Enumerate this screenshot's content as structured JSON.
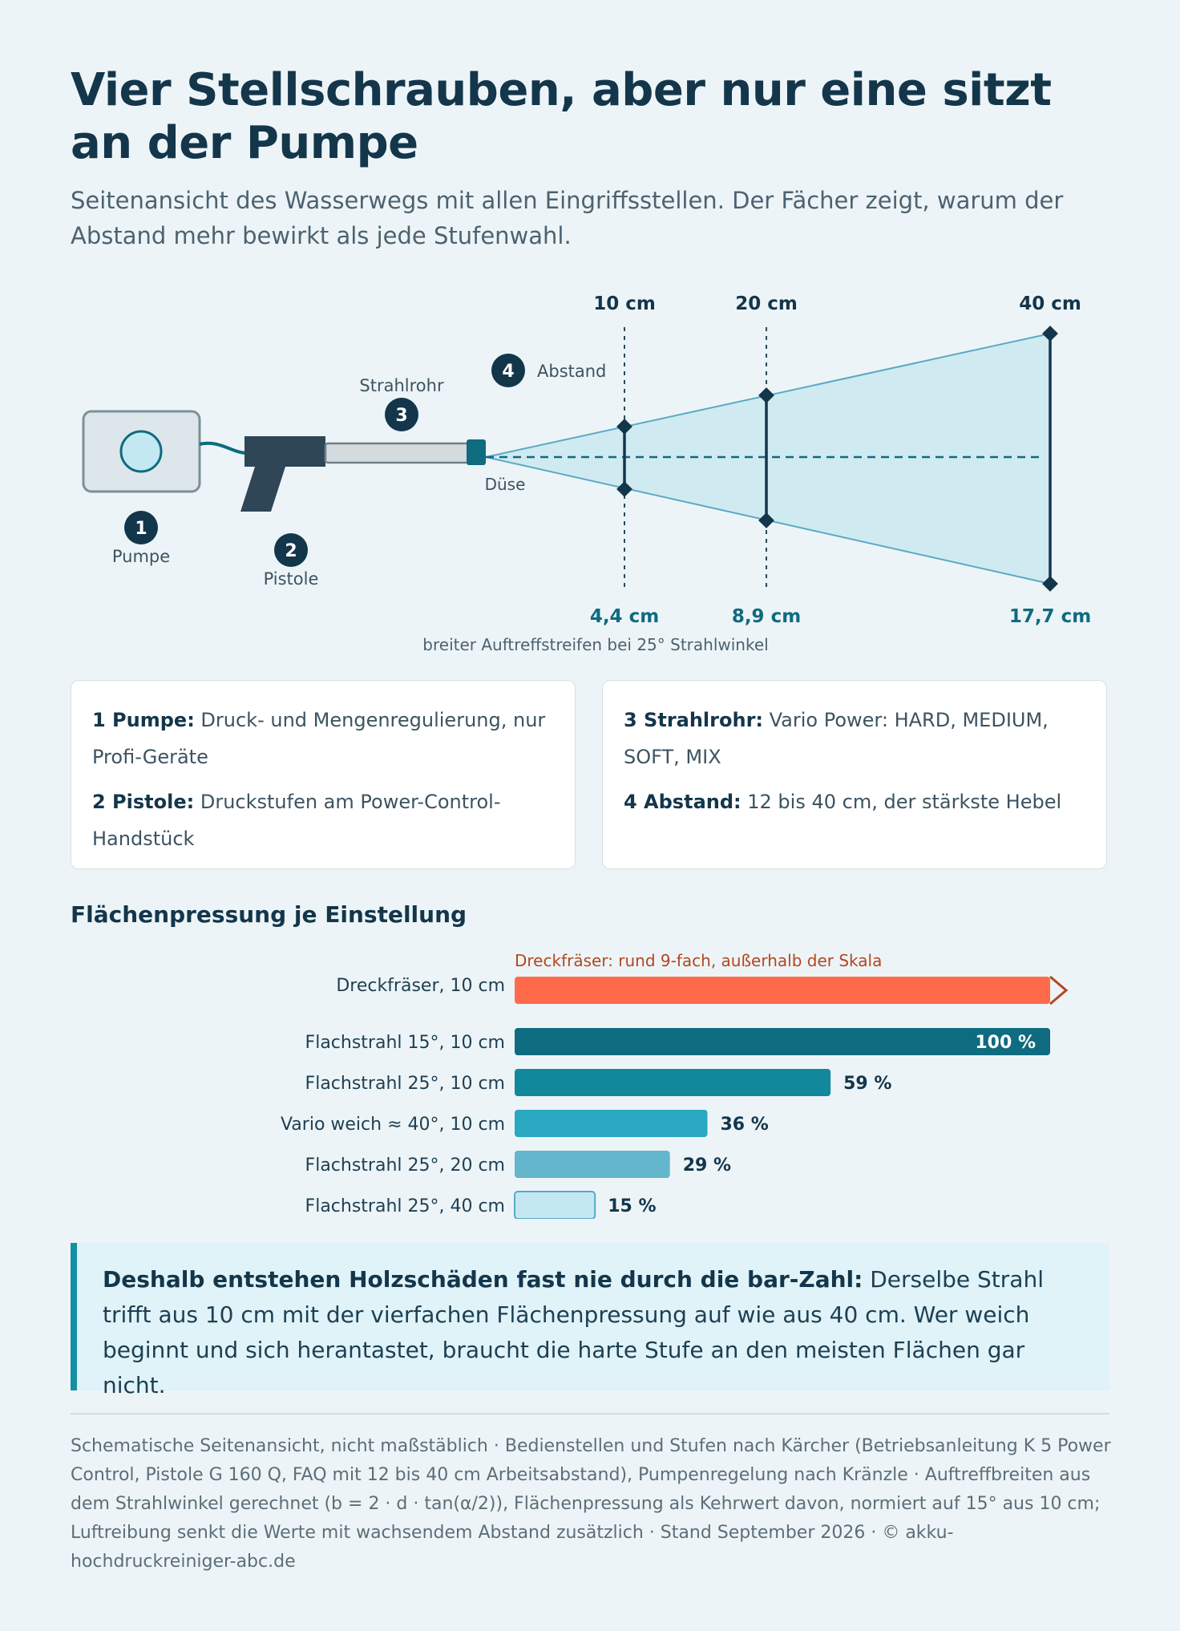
{
  "title": "Vier Stellschrauben, aber nur eine sitzt an der Pumpe",
  "subtitle": "Seitenansicht des Wasserwegs mit allen Eingriffsstellen. Der Fächer zeigt, warum der Abstand mehr bewirkt als jede Stufenwahl.",
  "diagram": {
    "markers": [
      {
        "num": "1",
        "label": "Pumpe"
      },
      {
        "num": "2",
        "label": "Pistole"
      },
      {
        "num": "3",
        "label": "Strahlrohr"
      },
      {
        "num": "4",
        "label": "Abstand"
      }
    ],
    "nozzle_label": "Düse",
    "distances": [
      "10 cm",
      "20 cm",
      "40 cm"
    ],
    "widths": [
      "4,4 cm",
      "8,9 cm",
      "17,7 cm"
    ],
    "width_caption": "breiter Auftreffstreifen bei 25° Strahlwinkel",
    "colors": {
      "fan": "#cfe9f1",
      "fan_edge": "#5aa9c4",
      "dark": "#13364b",
      "nozzle": "#0e6b80"
    }
  },
  "cards": {
    "left": [
      {
        "key": "1 Pumpe:",
        "text": " Druck- und Mengenregulierung, nur Profi-Geräte"
      },
      {
        "key": "2 Pistole:",
        "text": " Druckstufen am Power-Control-Handstück"
      }
    ],
    "right": [
      {
        "key": "3 Strahlrohr:",
        "text": " Vario Power: HARD, MEDIUM, SOFT, MIX"
      },
      {
        "key": "4 Abstand:",
        "text": " 12 bis 40 cm, der stärkste Hebel"
      }
    ]
  },
  "chart_title": "Flächenpressung je Einstellung",
  "chart_data": {
    "type": "bar",
    "orientation": "horizontal",
    "overflow_note": "Dreckfräser: rund 9-fach, außerhalb der Skala",
    "overflow_category": "Dreckfräser, 10 cm",
    "categories": [
      "Flachstrahl 15°, 10 cm",
      "Flachstrahl 25°, 10 cm",
      "Vario weich ≈ 40°, 10 cm",
      "Flachstrahl 25°, 20 cm",
      "Flachstrahl 25°, 40 cm"
    ],
    "values": [
      100,
      59,
      36,
      29,
      15
    ],
    "value_labels": [
      "100 %",
      "59 %",
      "36 %",
      "29 %",
      "15 %"
    ],
    "xlim": [
      0,
      100
    ],
    "colors": [
      "#0e6b80",
      "#12889c",
      "#2aa7c1",
      "#64b6cc",
      "#c3e8f1"
    ],
    "overflow_color": "#ff6b4a"
  },
  "callout": {
    "bold": "Deshalb entstehen Holzschäden fast nie durch die bar-Zahl:",
    "text": " Derselbe Strahl trifft aus 10 cm mit der vierfachen Flächenpressung auf wie aus 40 cm. Wer weich beginnt und sich herantastet, braucht die harte Stufe an den meisten Flächen gar nicht."
  },
  "footer": "Schematische Seitenansicht, nicht maßstäblich · Bedienstellen und Stufen nach Kärcher (Betriebsanleitung K 5 Power Control, Pistole G 160 Q, FAQ mit 12 bis 40 cm Arbeitsabstand), Pumpenregelung nach Kränzle · Auftreffbreiten aus dem Strahlwinkel gerechnet (b = 2 · d · tan(α/2)), Flächenpressung als Kehrwert davon, normiert auf 15° aus 10 cm; Luftreibung senkt die Werte mit wachsendem Abstand zusätzlich · Stand September 2026 · © akku-hochdruckreiniger-abc.de"
}
